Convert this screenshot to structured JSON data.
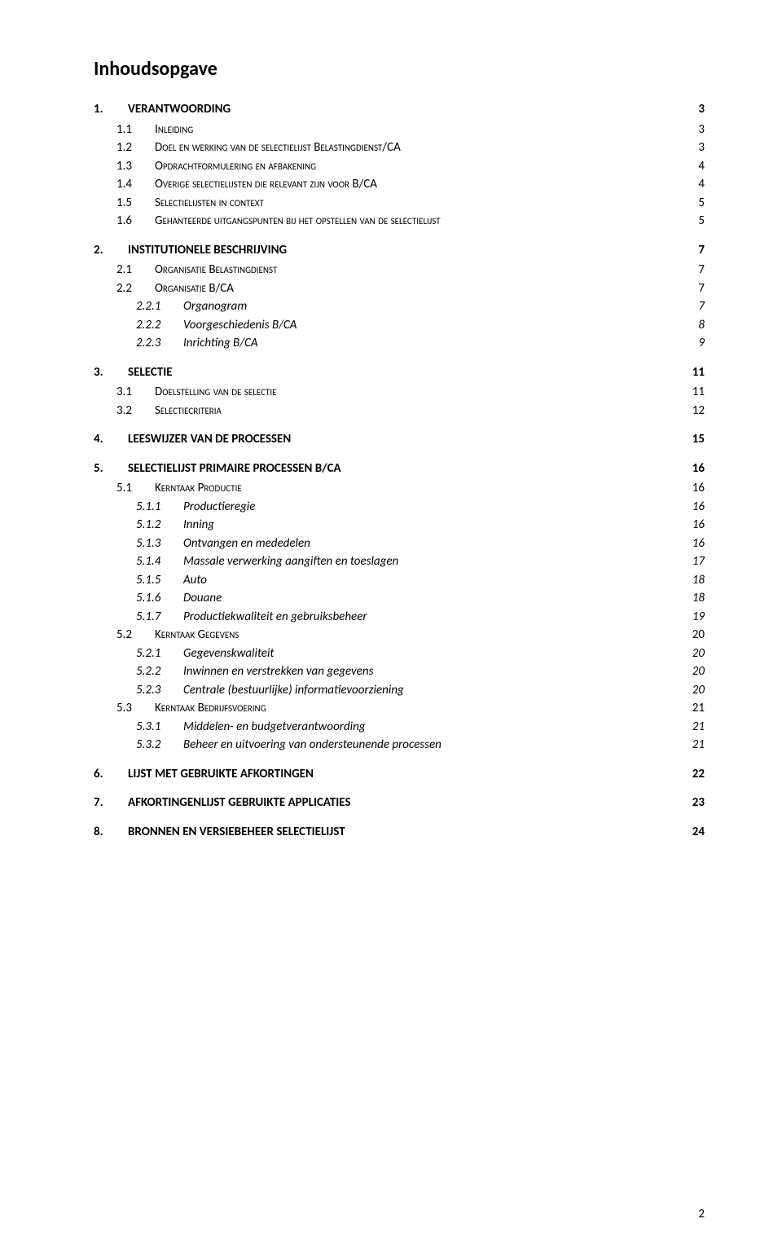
{
  "colors": {
    "background": "#ffffff",
    "text": "#000000"
  },
  "title": "Inhoudsopgave",
  "page_number": "2",
  "entries": [
    {
      "level": 1,
      "num": "1.",
      "label": "VERANTWOORDING",
      "page": "3"
    },
    {
      "level": 2,
      "num": "1.1",
      "label": "Inleiding",
      "page": "3"
    },
    {
      "level": 2,
      "num": "1.2",
      "label": "Doel en werking van de selectielijst Belastingdienst/CA",
      "page": "3"
    },
    {
      "level": 2,
      "num": "1.3",
      "label": "Opdrachtformulering en afbakening",
      "page": "4"
    },
    {
      "level": 2,
      "num": "1.4",
      "label": "Overige selectielijsten die relevant zijn voor B/CA",
      "page": "4"
    },
    {
      "level": 2,
      "num": "1.5",
      "label": "Selectielijsten in context",
      "page": "5"
    },
    {
      "level": 2,
      "num": "1.6",
      "label": "Gehanteerde uitgangspunten bij het opstellen van de selectielijst",
      "page": "5"
    },
    {
      "level": 1,
      "num": "2.",
      "label": "INSTITUTIONELE BESCHRIJVING",
      "page": "7"
    },
    {
      "level": 2,
      "num": "2.1",
      "label": "Organisatie Belastingdienst",
      "page": "7"
    },
    {
      "level": 2,
      "num": "2.2",
      "label": "Organisatie B/CA",
      "page": "7"
    },
    {
      "level": 3,
      "num": "2.2.1",
      "label": "Organogram",
      "page": "7"
    },
    {
      "level": 3,
      "num": "2.2.2",
      "label": "Voorgeschiedenis B/CA",
      "page": "8"
    },
    {
      "level": 3,
      "num": "2.2.3",
      "label": "Inrichting B/CA",
      "page": "9"
    },
    {
      "level": 1,
      "num": "3.",
      "label": "SELECTIE",
      "page": "11"
    },
    {
      "level": 2,
      "num": "3.1",
      "label": "Doelstelling van de selectie",
      "page": "11"
    },
    {
      "level": 2,
      "num": "3.2",
      "label": "Selectiecriteria",
      "page": "12"
    },
    {
      "level": 1,
      "num": "4.",
      "label": "LEESWIJZER VAN DE PROCESSEN",
      "page": "15"
    },
    {
      "level": 1,
      "num": "5.",
      "label": "SELECTIELIJST PRIMAIRE PROCESSEN B/CA",
      "page": "16"
    },
    {
      "level": 2,
      "num": "5.1",
      "label": "Kerntaak Productie",
      "page": "16"
    },
    {
      "level": 3,
      "num": "5.1.1",
      "label": "Productieregie",
      "page": "16"
    },
    {
      "level": 3,
      "num": "5.1.2",
      "label": "Inning",
      "page": "16"
    },
    {
      "level": 3,
      "num": "5.1.3",
      "label": "Ontvangen en mededelen",
      "page": "16"
    },
    {
      "level": 3,
      "num": "5.1.4",
      "label": "Massale verwerking aangiften en toeslagen",
      "page": "17"
    },
    {
      "level": 3,
      "num": "5.1.5",
      "label": "Auto",
      "page": "18"
    },
    {
      "level": 3,
      "num": "5.1.6",
      "label": "Douane",
      "page": "18"
    },
    {
      "level": 3,
      "num": "5.1.7",
      "label": "Productiekwaliteit en gebruiksbeheer",
      "page": "19"
    },
    {
      "level": 2,
      "num": "5.2",
      "label": "Kerntaak Gegevens",
      "page": "20"
    },
    {
      "level": 3,
      "num": "5.2.1",
      "label": "Gegevenskwaliteit",
      "page": "20"
    },
    {
      "level": 3,
      "num": "5.2.2",
      "label": "Inwinnen en verstrekken van gegevens",
      "page": "20"
    },
    {
      "level": 3,
      "num": "5.2.3",
      "label": "Centrale (bestuurlijke) informatievoorziening",
      "page": "20"
    },
    {
      "level": 2,
      "num": "5.3",
      "label": "Kerntaak Bedrijfsvoering",
      "page": "21"
    },
    {
      "level": 3,
      "num": "5.3.1",
      "label": "Middelen- en budgetverantwoording",
      "page": "21"
    },
    {
      "level": 3,
      "num": "5.3.2",
      "label": "Beheer en uitvoering van ondersteunende processen",
      "page": "21"
    },
    {
      "level": 1,
      "num": "6.",
      "label": "LIJST MET GEBRUIKTE AFKORTINGEN",
      "page": "22"
    },
    {
      "level": 1,
      "num": "7.",
      "label": "AFKORTINGENLIJST GEBRUIKTE APPLICATIES",
      "page": "23"
    },
    {
      "level": 1,
      "num": "8.",
      "label": "BRONNEN EN VERSIEBEHEER SELECTIELIJST",
      "page": "24"
    }
  ]
}
